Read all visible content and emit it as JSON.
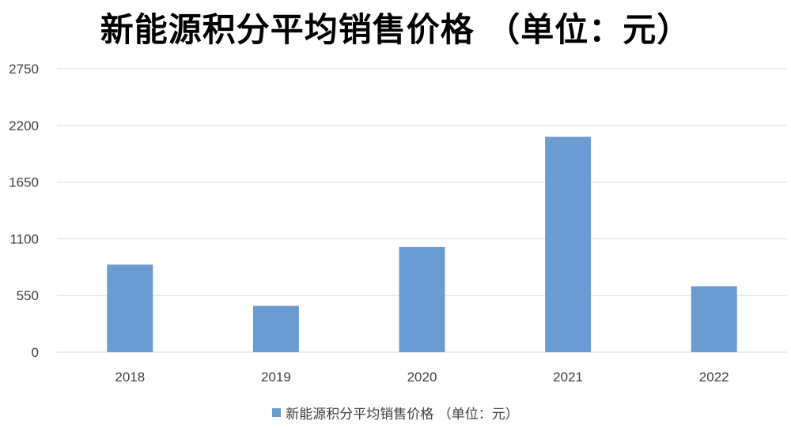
{
  "chart_data": {
    "type": "bar",
    "title": "新能源积分平均销售价格 （单位：元）",
    "categories": [
      "2018",
      "2019",
      "2020",
      "2021",
      "2022"
    ],
    "series": [
      {
        "name": "新能源积分平均销售价格 （单位：元）",
        "values": [
          850,
          450,
          1020,
          2090,
          640
        ],
        "color": "#6a9bd1"
      }
    ],
    "ylim": [
      0,
      2750
    ],
    "yticks": [
      "0",
      "550",
      "1100",
      "1650",
      "2200",
      "2750"
    ],
    "grid": true,
    "gridColor": "#d9d9d9",
    "legend": "bottom"
  }
}
